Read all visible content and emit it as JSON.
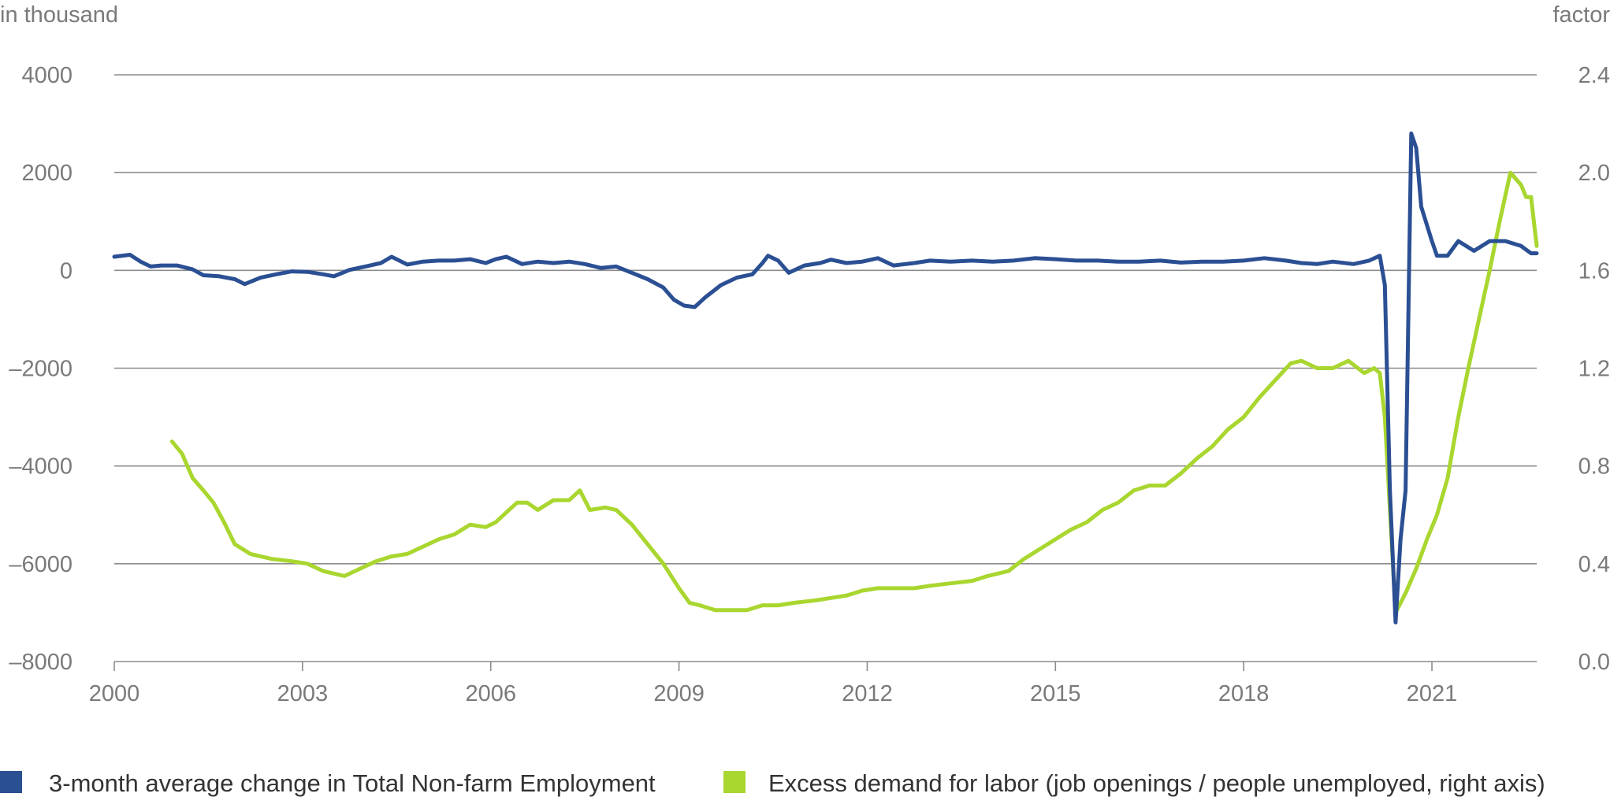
{
  "chart_data": {
    "type": "line",
    "left_axis_unit": "in thousand",
    "right_axis_unit": "factor",
    "left_ylim": [
      -8000,
      4000
    ],
    "right_ylim": [
      0.0,
      2.4
    ],
    "xlim": [
      2000,
      2022.67
    ],
    "left_ticks": [
      "4000",
      "2000",
      "0",
      "–2000",
      "–4000",
      "–6000",
      "–8000"
    ],
    "left_tick_values": [
      4000,
      2000,
      0,
      -2000,
      -4000,
      -6000,
      -8000
    ],
    "right_ticks": [
      "2.4",
      "2.0",
      "1.6",
      "1.2",
      "0.8",
      "0.4",
      "0.0"
    ],
    "right_tick_values": [
      2.4,
      2.0,
      1.6,
      1.2,
      0.8,
      0.4,
      0.0
    ],
    "x_ticks": [
      "2000",
      "2003",
      "2006",
      "2009",
      "2012",
      "2015",
      "2018",
      "2021"
    ],
    "x_tick_values": [
      2000,
      2003,
      2006,
      2009,
      2012,
      2015,
      2018,
      2021
    ],
    "grid": "horizontal",
    "legend_position": "bottom",
    "series": [
      {
        "name": "3-month average change in Total Non-farm Employment",
        "axis": "left",
        "color": "#2b4f93",
        "points": [
          [
            2000.0,
            280
          ],
          [
            2000.25,
            320
          ],
          [
            2000.42,
            180
          ],
          [
            2000.58,
            80
          ],
          [
            2000.75,
            100
          ],
          [
            2001.0,
            100
          ],
          [
            2001.25,
            20
          ],
          [
            2001.42,
            -100
          ],
          [
            2001.67,
            -120
          ],
          [
            2001.92,
            -180
          ],
          [
            2002.08,
            -280
          ],
          [
            2002.33,
            -150
          ],
          [
            2002.58,
            -80
          ],
          [
            2002.83,
            -20
          ],
          [
            2003.08,
            -30
          ],
          [
            2003.33,
            -80
          ],
          [
            2003.5,
            -120
          ],
          [
            2003.75,
            10
          ],
          [
            2004.0,
            80
          ],
          [
            2004.25,
            150
          ],
          [
            2004.42,
            280
          ],
          [
            2004.67,
            120
          ],
          [
            2004.92,
            180
          ],
          [
            2005.17,
            200
          ],
          [
            2005.42,
            200
          ],
          [
            2005.67,
            230
          ],
          [
            2005.92,
            150
          ],
          [
            2006.08,
            230
          ],
          [
            2006.25,
            280
          ],
          [
            2006.5,
            130
          ],
          [
            2006.75,
            180
          ],
          [
            2007.0,
            150
          ],
          [
            2007.25,
            180
          ],
          [
            2007.5,
            130
          ],
          [
            2007.75,
            50
          ],
          [
            2008.0,
            80
          ],
          [
            2008.25,
            -50
          ],
          [
            2008.5,
            -180
          ],
          [
            2008.75,
            -350
          ],
          [
            2008.92,
            -600
          ],
          [
            2009.08,
            -720
          ],
          [
            2009.25,
            -750
          ],
          [
            2009.42,
            -550
          ],
          [
            2009.67,
            -300
          ],
          [
            2009.92,
            -150
          ],
          [
            2010.17,
            -80
          ],
          [
            2010.33,
            150
          ],
          [
            2010.42,
            300
          ],
          [
            2010.58,
            200
          ],
          [
            2010.75,
            -50
          ],
          [
            2011.0,
            100
          ],
          [
            2011.25,
            150
          ],
          [
            2011.42,
            220
          ],
          [
            2011.67,
            150
          ],
          [
            2011.92,
            180
          ],
          [
            2012.17,
            250
          ],
          [
            2012.42,
            100
          ],
          [
            2012.75,
            150
          ],
          [
            2013.0,
            200
          ],
          [
            2013.33,
            180
          ],
          [
            2013.67,
            200
          ],
          [
            2014.0,
            180
          ],
          [
            2014.33,
            200
          ],
          [
            2014.67,
            250
          ],
          [
            2015.0,
            230
          ],
          [
            2015.33,
            200
          ],
          [
            2015.67,
            200
          ],
          [
            2016.0,
            180
          ],
          [
            2016.33,
            180
          ],
          [
            2016.67,
            200
          ],
          [
            2017.0,
            160
          ],
          [
            2017.33,
            180
          ],
          [
            2017.67,
            180
          ],
          [
            2018.0,
            200
          ],
          [
            2018.33,
            250
          ],
          [
            2018.67,
            200
          ],
          [
            2018.92,
            150
          ],
          [
            2019.17,
            130
          ],
          [
            2019.42,
            180
          ],
          [
            2019.75,
            130
          ],
          [
            2020.0,
            200
          ],
          [
            2020.17,
            300
          ],
          [
            2020.25,
            -300
          ],
          [
            2020.33,
            -4500
          ],
          [
            2020.42,
            -7200
          ],
          [
            2020.5,
            -5500
          ],
          [
            2020.58,
            -4500
          ],
          [
            2020.67,
            2800
          ],
          [
            2020.75,
            2500
          ],
          [
            2020.83,
            1300
          ],
          [
            2021.0,
            600
          ],
          [
            2021.08,
            300
          ],
          [
            2021.25,
            300
          ],
          [
            2021.42,
            600
          ],
          [
            2021.67,
            400
          ],
          [
            2021.92,
            600
          ],
          [
            2022.17,
            600
          ],
          [
            2022.42,
            500
          ],
          [
            2022.58,
            350
          ],
          [
            2022.67,
            350
          ]
        ]
      },
      {
        "name": "Excess demand for labor (job openings / people unemployed, right axis)",
        "axis": "right",
        "color": "#a9d62f",
        "points": [
          [
            2000.92,
            0.9
          ],
          [
            2001.08,
            0.85
          ],
          [
            2001.25,
            0.75
          ],
          [
            2001.42,
            0.7
          ],
          [
            2001.58,
            0.65
          ],
          [
            2001.75,
            0.57
          ],
          [
            2001.92,
            0.48
          ],
          [
            2002.17,
            0.44
          ],
          [
            2002.5,
            0.42
          ],
          [
            2002.83,
            0.41
          ],
          [
            2003.08,
            0.4
          ],
          [
            2003.33,
            0.37
          ],
          [
            2003.5,
            0.36
          ],
          [
            2003.67,
            0.35
          ],
          [
            2003.92,
            0.38
          ],
          [
            2004.17,
            0.41
          ],
          [
            2004.42,
            0.43
          ],
          [
            2004.67,
            0.44
          ],
          [
            2004.92,
            0.47
          ],
          [
            2005.17,
            0.5
          ],
          [
            2005.42,
            0.52
          ],
          [
            2005.67,
            0.56
          ],
          [
            2005.92,
            0.55
          ],
          [
            2006.08,
            0.57
          ],
          [
            2006.25,
            0.61
          ],
          [
            2006.42,
            0.65
          ],
          [
            2006.58,
            0.65
          ],
          [
            2006.75,
            0.62
          ],
          [
            2007.0,
            0.66
          ],
          [
            2007.25,
            0.66
          ],
          [
            2007.42,
            0.7
          ],
          [
            2007.58,
            0.62
          ],
          [
            2007.83,
            0.63
          ],
          [
            2008.0,
            0.62
          ],
          [
            2008.25,
            0.56
          ],
          [
            2008.5,
            0.48
          ],
          [
            2008.75,
            0.4
          ],
          [
            2009.0,
            0.3
          ],
          [
            2009.17,
            0.24
          ],
          [
            2009.33,
            0.23
          ],
          [
            2009.58,
            0.21
          ],
          [
            2009.83,
            0.21
          ],
          [
            2010.08,
            0.21
          ],
          [
            2010.33,
            0.23
          ],
          [
            2010.58,
            0.23
          ],
          [
            2010.83,
            0.24
          ],
          [
            2011.17,
            0.25
          ],
          [
            2011.42,
            0.26
          ],
          [
            2011.67,
            0.27
          ],
          [
            2011.92,
            0.29
          ],
          [
            2012.17,
            0.3
          ],
          [
            2012.42,
            0.3
          ],
          [
            2012.75,
            0.3
          ],
          [
            2013.0,
            0.31
          ],
          [
            2013.33,
            0.32
          ],
          [
            2013.67,
            0.33
          ],
          [
            2013.92,
            0.35
          ],
          [
            2014.25,
            0.37
          ],
          [
            2014.5,
            0.42
          ],
          [
            2014.75,
            0.46
          ],
          [
            2015.0,
            0.5
          ],
          [
            2015.25,
            0.54
          ],
          [
            2015.5,
            0.57
          ],
          [
            2015.75,
            0.62
          ],
          [
            2016.0,
            0.65
          ],
          [
            2016.25,
            0.7
          ],
          [
            2016.5,
            0.72
          ],
          [
            2016.75,
            0.72
          ],
          [
            2017.0,
            0.77
          ],
          [
            2017.25,
            0.83
          ],
          [
            2017.5,
            0.88
          ],
          [
            2017.75,
            0.95
          ],
          [
            2018.0,
            1.0
          ],
          [
            2018.25,
            1.08
          ],
          [
            2018.5,
            1.15
          ],
          [
            2018.75,
            1.22
          ],
          [
            2018.92,
            1.23
          ],
          [
            2019.17,
            1.2
          ],
          [
            2019.42,
            1.2
          ],
          [
            2019.67,
            1.23
          ],
          [
            2019.92,
            1.18
          ],
          [
            2020.08,
            1.2
          ],
          [
            2020.17,
            1.18
          ],
          [
            2020.25,
            1.0
          ],
          [
            2020.42,
            0.2
          ],
          [
            2020.58,
            0.28
          ],
          [
            2020.75,
            0.38
          ],
          [
            2020.92,
            0.5
          ],
          [
            2021.08,
            0.6
          ],
          [
            2021.25,
            0.75
          ],
          [
            2021.42,
            1.0
          ],
          [
            2021.58,
            1.2
          ],
          [
            2021.75,
            1.4
          ],
          [
            2021.92,
            1.6
          ],
          [
            2022.08,
            1.8
          ],
          [
            2022.25,
            2.0
          ],
          [
            2022.42,
            1.95
          ],
          [
            2022.5,
            1.9
          ],
          [
            2022.58,
            1.9
          ],
          [
            2022.67,
            1.7
          ]
        ]
      }
    ]
  }
}
